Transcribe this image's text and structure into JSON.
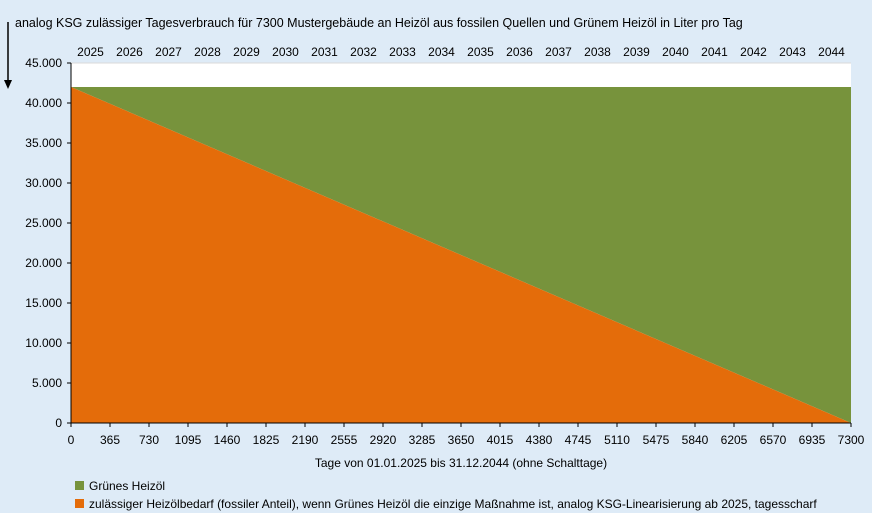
{
  "chart_data": {
    "type": "area",
    "title": "analog KSG zulässiger Tagesverbrauch für 7300 Mustergebäude an Heizöl aus fossilen Quellen und Grünem Heizöl in Liter pro Tag",
    "xlabel": "Tage von 01.01.2025 bis 31.12.2044  (ohne Schalttage)",
    "ylabel": "",
    "xlim": [
      0,
      7300
    ],
    "ylim": [
      0,
      45000
    ],
    "x_ticks": [
      0,
      365,
      730,
      1095,
      1460,
      1825,
      2190,
      2555,
      2920,
      3285,
      3650,
      4015,
      4380,
      4745,
      5110,
      5475,
      5840,
      6205,
      6570,
      6935,
      7300
    ],
    "y_ticks": [
      "0",
      "5.000",
      "10.000",
      "15.000",
      "20.000",
      "25.000",
      "30.000",
      "35.000",
      "40.000",
      "45.000"
    ],
    "y_tick_values": [
      0,
      5000,
      10000,
      15000,
      20000,
      25000,
      30000,
      35000,
      40000,
      45000
    ],
    "year_labels": [
      "2025",
      "2026",
      "2027",
      "2028",
      "2029",
      "2030",
      "2031",
      "2032",
      "2033",
      "2034",
      "2035",
      "2036",
      "2037",
      "2038",
      "2039",
      "2040",
      "2041",
      "2042",
      "2043",
      "2044"
    ],
    "series": [
      {
        "name": "Grünes Heizöl",
        "color": "#77933c",
        "stacked": true,
        "x": [
          0,
          7300
        ],
        "values": [
          0,
          42000
        ]
      },
      {
        "name": "zulässiger Heizölbedarf (fossiler Anteil), wenn Grünes Heizöl die einzige Maßnahme ist, analog KSG-Linearisierung ab 2025, tagesscharf",
        "color": "#e46c0a",
        "x": [
          0,
          7300
        ],
        "values": [
          42000,
          0
        ]
      }
    ],
    "total": 42000,
    "grid": "horizontal",
    "legend_position": "bottom-left"
  }
}
